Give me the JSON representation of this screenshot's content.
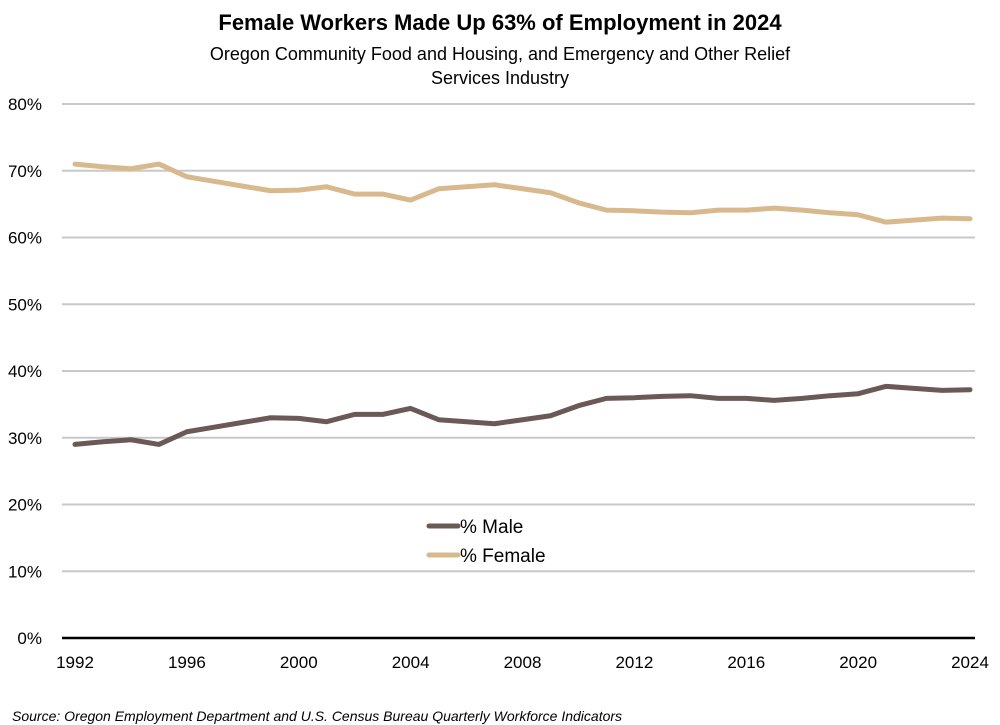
{
  "chart_data": {
    "type": "line",
    "title": "Female Workers Made Up 63% of Employment in 2024",
    "subtitle": "Oregon Community Food and Housing, and Emergency and Other Relief Services Industry",
    "source": "Source: Oregon Employment Department and U.S. Census Bureau Quarterly Workforce Indicators",
    "xlabel": "",
    "ylabel": "",
    "x": [
      1992,
      1993,
      1994,
      1995,
      1996,
      1997,
      1998,
      1999,
      2000,
      2001,
      2002,
      2003,
      2004,
      2005,
      2006,
      2007,
      2008,
      2009,
      2010,
      2011,
      2012,
      2013,
      2014,
      2015,
      2016,
      2017,
      2018,
      2019,
      2020,
      2021,
      2022,
      2023,
      2024
    ],
    "xlim": [
      1992,
      2024
    ],
    "x_ticks": [
      "1992",
      "1996",
      "2000",
      "2004",
      "2008",
      "2012",
      "2016",
      "2020",
      "2024"
    ],
    "ylim": [
      0,
      80
    ],
    "y_ticks": [
      "0%",
      "10%",
      "20%",
      "30%",
      "40%",
      "50%",
      "60%",
      "70%",
      "80%"
    ],
    "grid": true,
    "legend_position": "bottom-center",
    "series": [
      {
        "name": "% Male",
        "color": "#6b5957",
        "values": [
          29.0,
          29.4,
          29.7,
          29.0,
          30.9,
          31.6,
          32.3,
          33.0,
          32.9,
          32.4,
          33.5,
          33.5,
          34.4,
          32.7,
          32.4,
          32.1,
          32.7,
          33.3,
          34.8,
          35.9,
          36.0,
          36.2,
          36.3,
          35.9,
          35.9,
          35.6,
          35.9,
          36.3,
          36.6,
          37.7,
          37.4,
          37.1,
          37.2
        ]
      },
      {
        "name": "% Female",
        "color": "#d8b98e",
        "values": [
          71.0,
          70.6,
          70.3,
          71.0,
          69.1,
          68.4,
          67.7,
          67.0,
          67.1,
          67.6,
          66.5,
          66.5,
          65.6,
          67.3,
          67.6,
          67.9,
          67.3,
          66.7,
          65.2,
          64.1,
          64.0,
          63.8,
          63.7,
          64.1,
          64.1,
          64.4,
          64.1,
          63.7,
          63.4,
          62.3,
          62.6,
          62.9,
          62.8
        ]
      }
    ]
  }
}
